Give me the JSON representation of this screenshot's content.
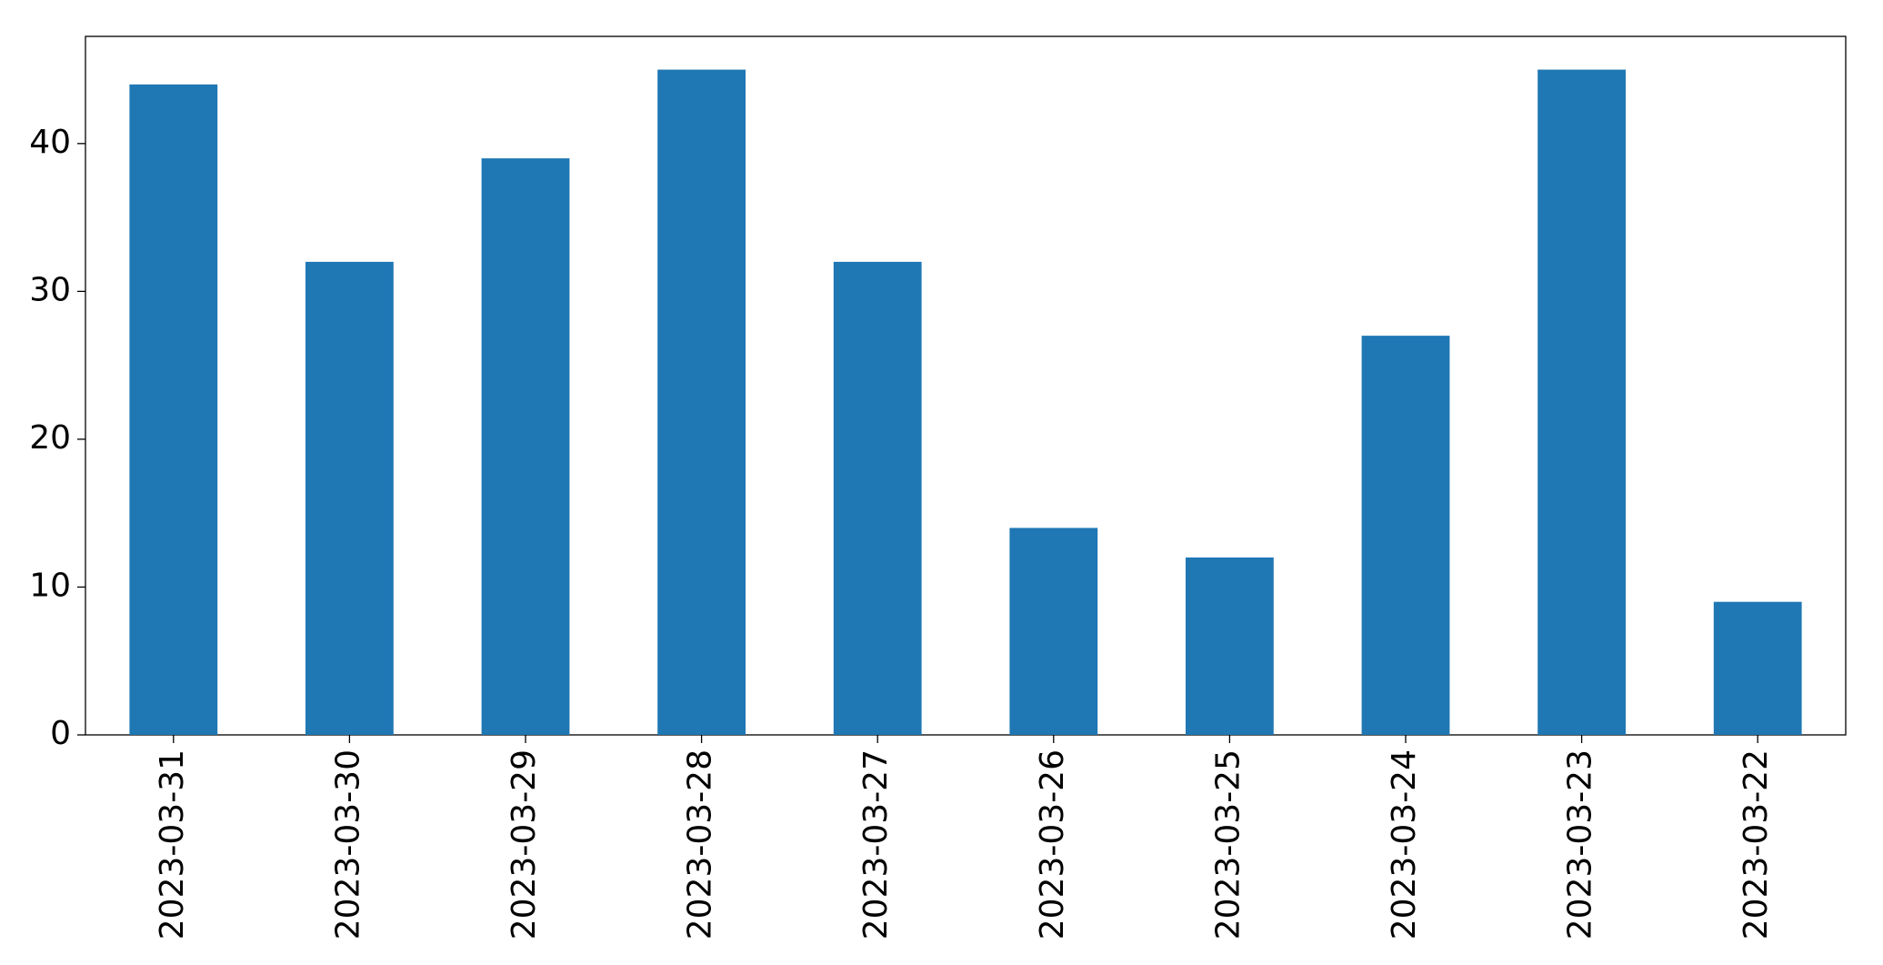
{
  "chart_data": {
    "type": "bar",
    "categories": [
      "2023-03-31",
      "2023-03-30",
      "2023-03-29",
      "2023-03-28",
      "2023-03-27",
      "2023-03-26",
      "2023-03-25",
      "2023-03-24",
      "2023-03-23",
      "2023-03-22"
    ],
    "values": [
      44,
      32,
      39,
      45,
      32,
      14,
      12,
      27,
      45,
      9
    ],
    "color": "#1f77b4",
    "ylim": [
      0,
      47.25
    ],
    "yticks": [
      0,
      10,
      20,
      30,
      40
    ],
    "grid": false
  }
}
